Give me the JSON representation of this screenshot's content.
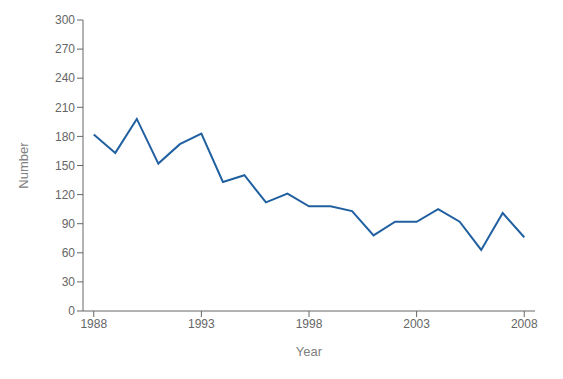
{
  "chart_data": {
    "type": "line",
    "x": [
      1988,
      1989,
      1990,
      1991,
      1992,
      1993,
      1994,
      1995,
      1996,
      1997,
      1998,
      1999,
      2000,
      2001,
      2002,
      2003,
      2004,
      2005,
      2006,
      2007,
      2008
    ],
    "values": [
      182,
      163,
      198,
      152,
      172,
      183,
      133,
      140,
      112,
      121,
      108,
      108,
      103,
      78,
      92,
      92,
      105,
      92,
      63,
      101,
      76
    ],
    "color": "#2060a0",
    "xlabel": "Year",
    "ylabel": "Number",
    "xlim": [
      1987.5,
      2008.5
    ],
    "ylim": [
      0,
      300
    ],
    "xticks": [
      1988,
      1993,
      1998,
      2003,
      2008
    ],
    "yticks": [
      0,
      30,
      60,
      90,
      120,
      150,
      180,
      210,
      240,
      270,
      300
    ],
    "grid": false
  }
}
